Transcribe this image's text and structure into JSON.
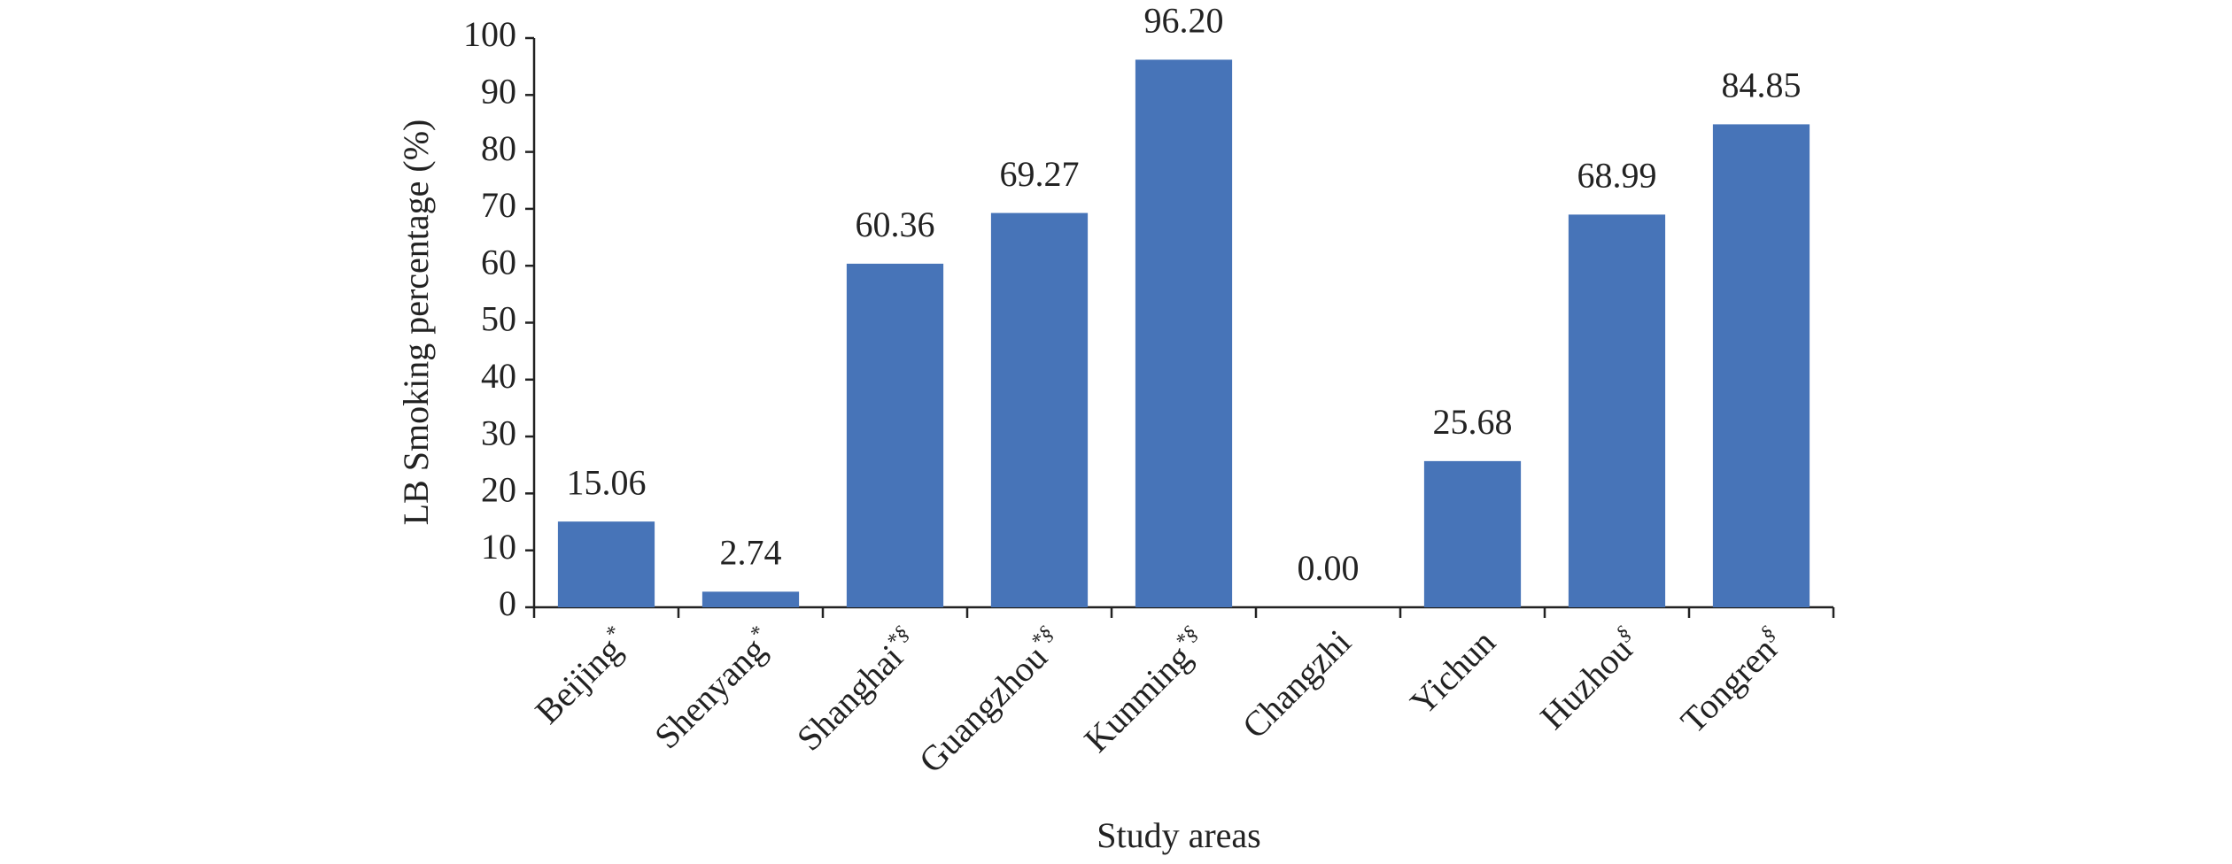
{
  "chart_data": {
    "type": "bar",
    "y_label": "LB Smoking percentage (%)",
    "x_label": "Study areas",
    "categories": [
      "Beijing*",
      "Shenyang*",
      "Shanghai*§",
      "Guangzhou*§",
      "Kunming*§",
      "Changzhi",
      "Yichun",
      "Huzhou§",
      "Tongren§"
    ],
    "values": [
      15.06,
      2.74,
      60.36,
      69.27,
      96.2,
      0,
      25.68,
      68.99,
      84.85
    ],
    "value_labels": [
      "15.06",
      "2.74",
      "60.36",
      "69.27",
      "96.20",
      "0.00",
      "25.68",
      "68.99",
      "84.85"
    ],
    "color": "#4774b8",
    "ylim": [
      0,
      100
    ],
    "yticks": [
      0,
      10,
      20,
      30,
      40,
      50,
      60,
      70,
      80,
      90,
      100
    ],
    "grid": false
  }
}
